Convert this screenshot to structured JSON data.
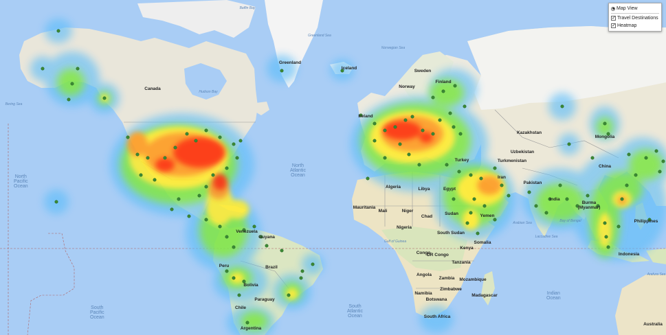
{
  "layer_control": {
    "map_view_label": "Map View",
    "travel_destinations_label": "Travel Destinations",
    "heatmap_label": "Heatmap",
    "travel_destinations_checked": true,
    "heatmap_checked": true
  },
  "labels": {
    "oceans": [
      {
        "name": "north-pacific-ocean",
        "text": "North\nPacific\nOcean"
      },
      {
        "name": "north-atlantic-ocean",
        "text": "North\nAtlantic\nOcean"
      },
      {
        "name": "south-pacific-ocean",
        "text": "South\nPacific\nOcean"
      },
      {
        "name": "south-atlantic-ocean",
        "text": "South\nAtlantic\nOcean"
      },
      {
        "name": "indian-ocean",
        "text": "Indian\nOcean"
      }
    ],
    "places": [
      {
        "name": "canada",
        "text": "Canada"
      },
      {
        "name": "greenland",
        "text": "Greenland"
      },
      {
        "name": "iceland",
        "text": "Iceland"
      },
      {
        "name": "sweden",
        "text": "Sweden"
      },
      {
        "name": "norway",
        "text": "Norway"
      },
      {
        "name": "finland",
        "text": "Finland"
      },
      {
        "name": "ireland",
        "text": "Ireland"
      },
      {
        "name": "kazakhstan",
        "text": "Kazakhstan"
      },
      {
        "name": "mongolia",
        "text": "Mongolia"
      },
      {
        "name": "uzbekistan",
        "text": "Uzbekistan"
      },
      {
        "name": "turkmenistan",
        "text": "Turkmenistan"
      },
      {
        "name": "turkey",
        "text": "Turkey"
      },
      {
        "name": "china",
        "text": "China"
      },
      {
        "name": "iran",
        "text": "Iran"
      },
      {
        "name": "pakistan",
        "text": "Pakistan"
      },
      {
        "name": "india",
        "text": "India"
      },
      {
        "name": "burma",
        "text": "Burma\n(Myanmar)"
      },
      {
        "name": "philippines",
        "text": "Philippines"
      },
      {
        "name": "algeria",
        "text": "Algeria"
      },
      {
        "name": "libya",
        "text": "Libya"
      },
      {
        "name": "egypt",
        "text": "Egypt"
      },
      {
        "name": "mauritania",
        "text": "Mauritania"
      },
      {
        "name": "mali",
        "text": "Mali"
      },
      {
        "name": "niger",
        "text": "Niger"
      },
      {
        "name": "chad",
        "text": "Chad"
      },
      {
        "name": "sudan",
        "text": "Sudan"
      },
      {
        "name": "nigeria",
        "text": "Nigeria"
      },
      {
        "name": "south-sudan",
        "text": "South Sudan"
      },
      {
        "name": "yemen",
        "text": "Yemen"
      },
      {
        "name": "somalia",
        "text": "Somalia"
      },
      {
        "name": "kenya",
        "text": "Kenya"
      },
      {
        "name": "dr-congo",
        "text": "DR Congo"
      },
      {
        "name": "congo",
        "text": "Congo"
      },
      {
        "name": "tanzania",
        "text": "Tanzania"
      },
      {
        "name": "angola",
        "text": "Angola"
      },
      {
        "name": "zambia",
        "text": "Zambia"
      },
      {
        "name": "namibia",
        "text": "Namibia"
      },
      {
        "name": "zimbabwe",
        "text": "Zimbabwe"
      },
      {
        "name": "mozambique",
        "text": "Mozambique"
      },
      {
        "name": "botswana",
        "text": "Botswana"
      },
      {
        "name": "madagascar",
        "text": "Madagascar"
      },
      {
        "name": "south-africa",
        "text": "South Africa"
      },
      {
        "name": "venezuela",
        "text": "Venezuela"
      },
      {
        "name": "guyana",
        "text": "Guyana"
      },
      {
        "name": "peru",
        "text": "Peru"
      },
      {
        "name": "brazil",
        "text": "Brazil"
      },
      {
        "name": "bolivia",
        "text": "Bolivia"
      },
      {
        "name": "paraguay",
        "text": "Paraguay"
      },
      {
        "name": "chile",
        "text": "Chile"
      },
      {
        "name": "argentina",
        "text": "Argentina"
      },
      {
        "name": "indonesia",
        "text": "Indonesia"
      },
      {
        "name": "australia",
        "text": "Australia"
      }
    ],
    "seas": [
      {
        "name": "bering-sea",
        "text": "Bering Sea"
      },
      {
        "name": "hudson-bay",
        "text": "Hudson Bay"
      },
      {
        "name": "baffin-bay",
        "text": "Baffin Bay"
      },
      {
        "name": "norwegian-sea",
        "text": "Norwegian Sea"
      },
      {
        "name": "greenland-sea",
        "text": "Greenland Sea"
      },
      {
        "name": "arabian-sea",
        "text": "Arabian Sea"
      },
      {
        "name": "bay-of-bengal",
        "text": "Bay of Bengal"
      },
      {
        "name": "laccadive-sea",
        "text": "Laccadive Sea"
      },
      {
        "name": "gulf-of-guinea",
        "text": "Gulf of Guinea"
      },
      {
        "name": "arafura-sea",
        "text": "Arafura Sea"
      }
    ]
  },
  "colors": {
    "ocean": "#a9cdf5",
    "land": "#e8e4d6",
    "land_north": "#f2f2f2",
    "land_green": "#cfe2b0",
    "land_desert": "#ece4c8",
    "border": "#999999",
    "marker": "#3a8a3a",
    "heat_low": "#4fb0ff",
    "heat_mid": "#7ee84f",
    "heat_high": "#ffee33",
    "heat_peak": "#ff2200"
  }
}
